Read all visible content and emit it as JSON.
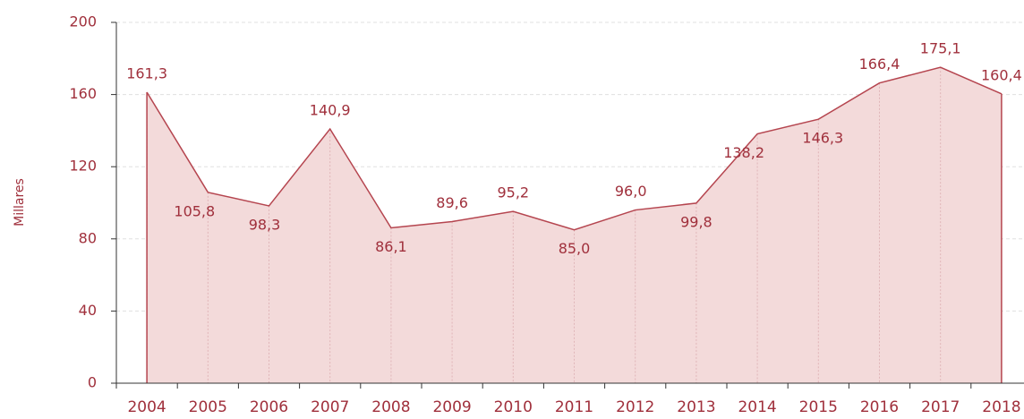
{
  "chart_data": {
    "type": "area",
    "y_label": "Millares",
    "categories": [
      "2004",
      "2005",
      "2006",
      "2007",
      "2008",
      "2009",
      "2010",
      "2011",
      "2012",
      "2013",
      "2014",
      "2015",
      "2016",
      "2017",
      "2018"
    ],
    "values": [
      161.3,
      105.8,
      98.3,
      140.9,
      86.1,
      89.6,
      95.2,
      85.0,
      96.0,
      99.8,
      138.2,
      146.3,
      166.4,
      175.1,
      160.4
    ],
    "value_labels": [
      "161,3",
      "105,8",
      "98,3",
      "140,9",
      "86,1",
      "89,6",
      "95,2",
      "85,0",
      "96,0",
      "99,8",
      "138,2",
      "146,3",
      "166,4",
      "175,1",
      "160,4"
    ],
    "color": "#b5454f",
    "fill": "#f3dada",
    "ylim": [
      0,
      200
    ],
    "yticks": [
      0,
      40,
      80,
      120,
      160,
      200
    ],
    "grid": true
  }
}
